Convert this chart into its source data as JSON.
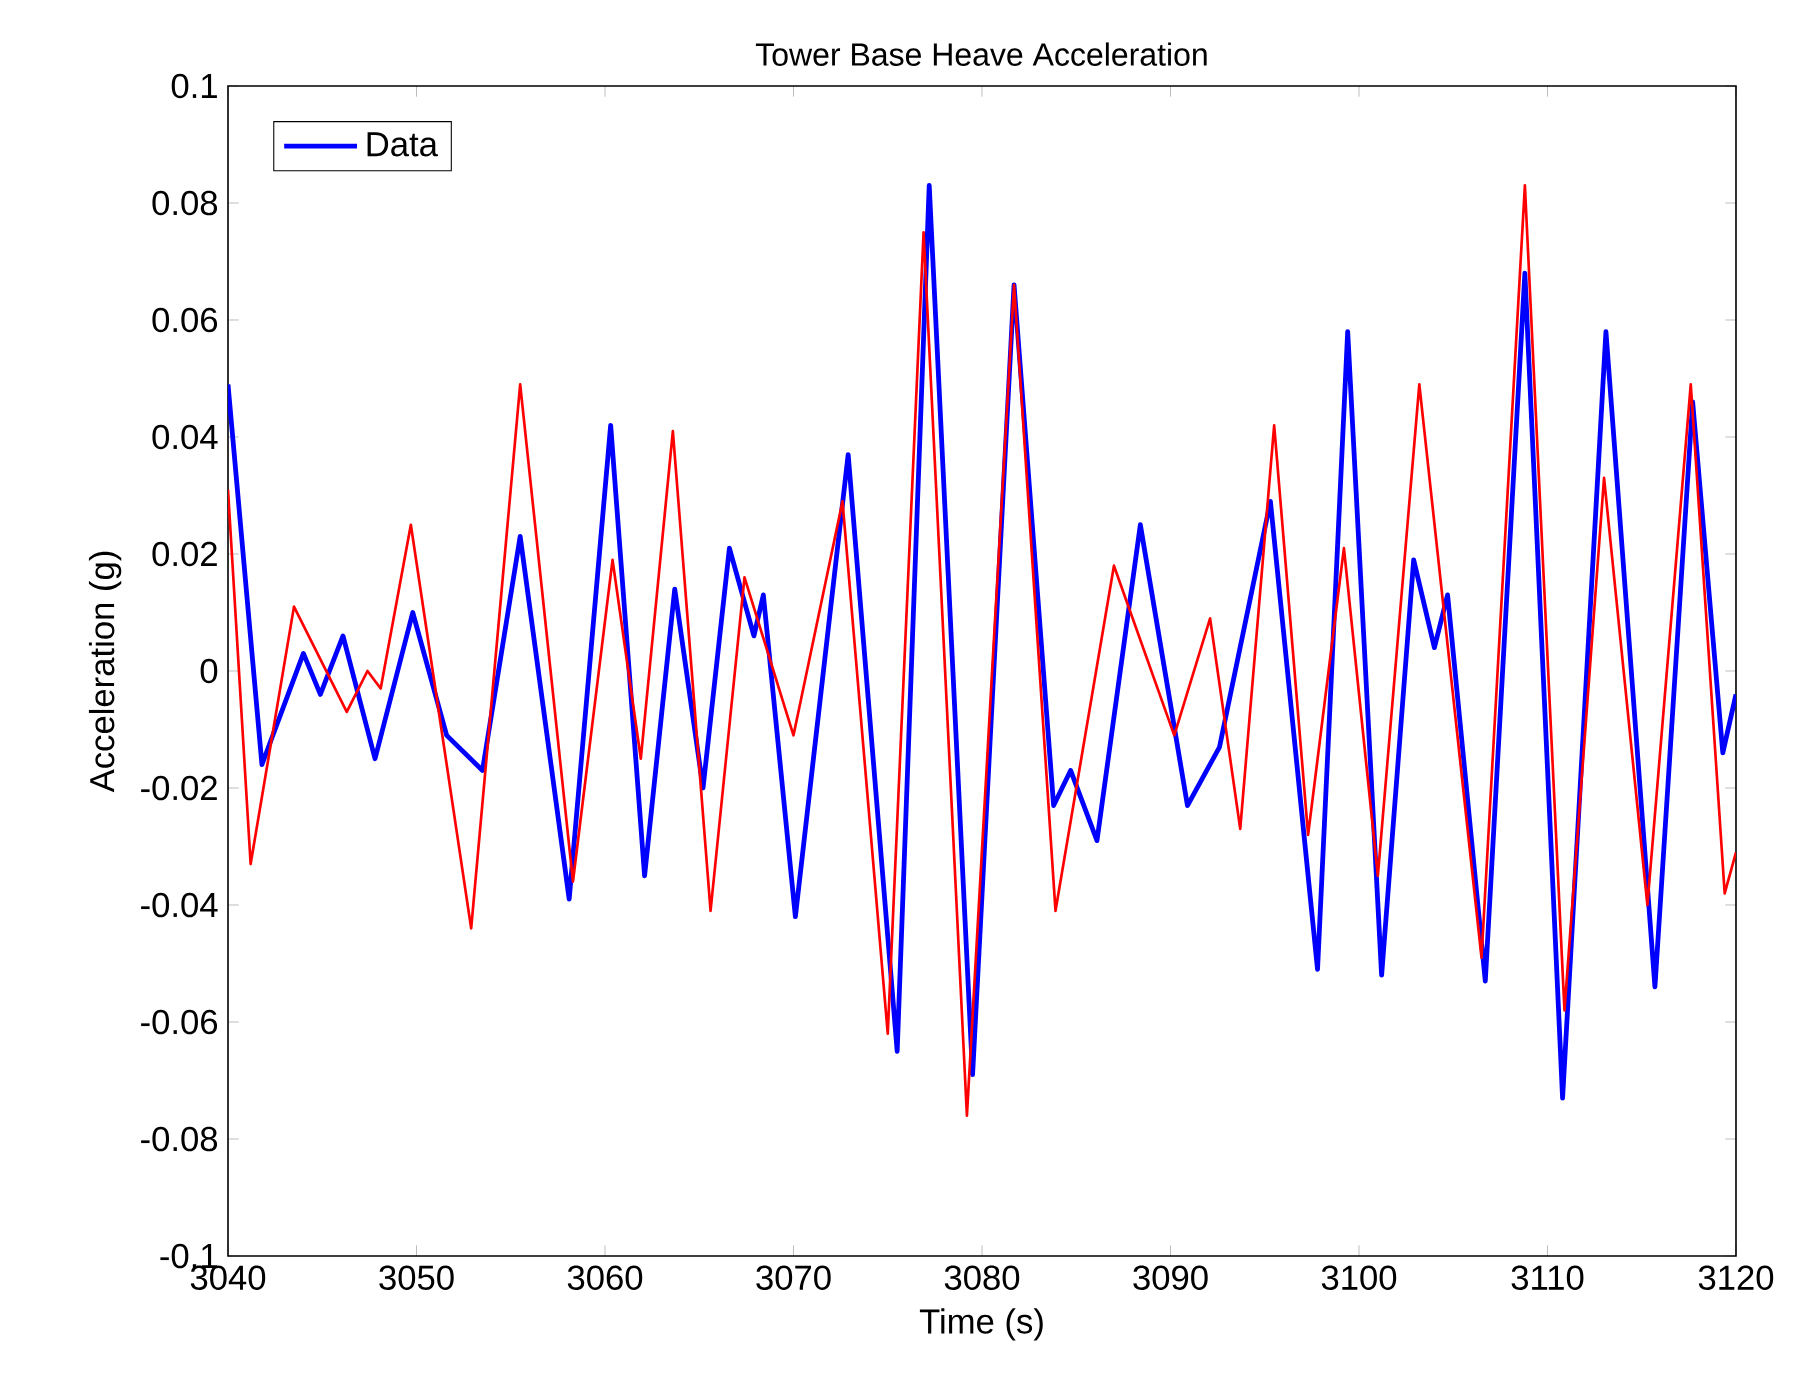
{
  "chart_data": {
    "type": "line",
    "title": "Tower Base Heave Acceleration",
    "xlabel": "Time (s)",
    "ylabel": "Acceleration (g)",
    "xlim": [
      3040,
      3120
    ],
    "xticks": [
      3040,
      3050,
      3060,
      3070,
      3080,
      3090,
      3100,
      3110,
      3120
    ],
    "ylim": [
      -0.1,
      0.1
    ],
    "yticks": [
      -0.1,
      -0.08,
      -0.06,
      -0.04,
      -0.02,
      0,
      0.02,
      0.04,
      0.06,
      0.08,
      0.1
    ],
    "grid": false,
    "legend": "top left",
    "line_style": "solid",
    "marker": "none",
    "series": [
      {
        "name": "Data",
        "color": "#0000ff",
        "x": [
          3040,
          3041.8,
          3044.0,
          3044.9,
          3046.1,
          3047.8,
          3049.8,
          3051.6,
          3053.5,
          3055.5,
          3058.1,
          3060.3,
          3062.1,
          3063.7,
          3065.2,
          3066.6,
          3067.9,
          3068.4,
          3070.1,
          3072.9,
          3075.5,
          3077.2,
          3079.5,
          3081.7,
          3083.8,
          3084.7,
          3086.1,
          3088.4,
          3090.9,
          3092.6,
          3095.3,
          3097.8,
          3099.4,
          3101.2,
          3102.9,
          3104.0,
          3104.7,
          3106.7,
          3108.8,
          3110.8,
          3113.1,
          3115.7,
          3117.7,
          3119.3,
          3120
        ],
        "values": [
          0.049,
          -0.016,
          0.003,
          -0.004,
          0.006,
          -0.015,
          0.01,
          -0.011,
          -0.017,
          0.023,
          -0.039,
          0.042,
          -0.035,
          0.014,
          -0.02,
          0.021,
          0.006,
          0.013,
          -0.042,
          0.037,
          -0.065,
          0.083,
          -0.069,
          0.066,
          -0.023,
          -0.017,
          -0.029,
          0.025,
          -0.023,
          -0.013,
          0.029,
          -0.051,
          0.058,
          -0.052,
          0.019,
          0.004,
          0.013,
          -0.053,
          0.068,
          -0.073,
          0.058,
          -0.054,
          0.046,
          -0.014,
          -0.004
        ]
      },
      {
        "color": "#ff0000",
        "x": [
          3040,
          3041.2,
          3043.5,
          3046.3,
          3047.4,
          3048.1,
          3049.7,
          3052.9,
          3055.5,
          3058.3,
          3060.4,
          3061.9,
          3063.6,
          3065.6,
          3067.4,
          3070.0,
          3072.6,
          3075.0,
          3076.9,
          3079.2,
          3081.7,
          3083.9,
          3087.0,
          3090.2,
          3092.1,
          3093.7,
          3095.5,
          3097.3,
          3099.2,
          3101.0,
          3103.2,
          3106.5,
          3108.8,
          3110.9,
          3113.0,
          3115.3,
          3117.6,
          3119.4,
          3120
        ],
        "values": [
          0.031,
          -0.033,
          0.011,
          -0.007,
          0.0,
          -0.003,
          0.025,
          -0.044,
          0.049,
          -0.036,
          0.019,
          -0.015,
          0.041,
          -0.041,
          0.016,
          -0.011,
          0.029,
          -0.062,
          0.075,
          -0.076,
          0.066,
          -0.041,
          0.018,
          -0.011,
          0.009,
          -0.027,
          0.042,
          -0.028,
          0.021,
          -0.035,
          0.049,
          -0.049,
          0.083,
          -0.058,
          0.033,
          -0.04,
          0.049,
          -0.038,
          -0.031
        ]
      }
    ]
  }
}
